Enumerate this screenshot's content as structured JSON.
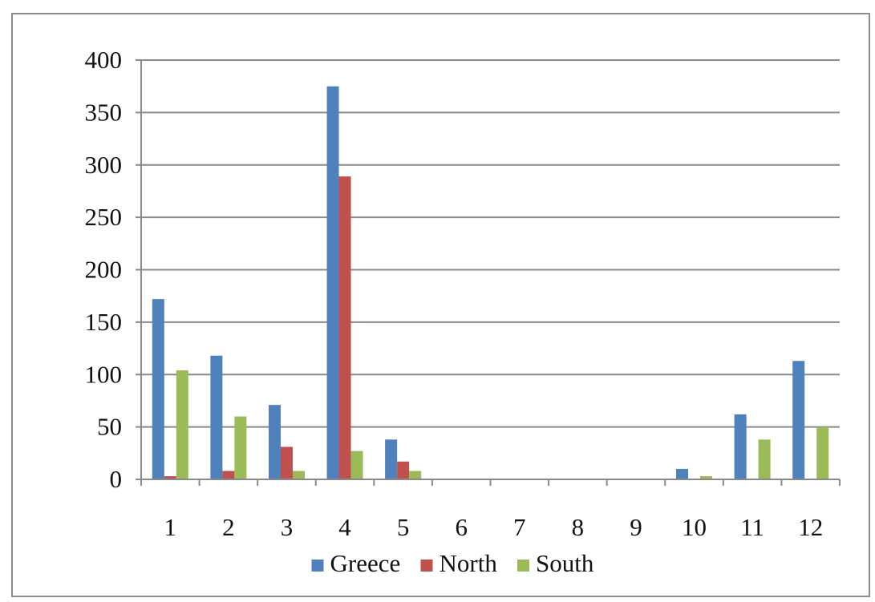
{
  "chart_data": {
    "type": "bar",
    "title": "",
    "xlabel": "",
    "ylabel": "",
    "categories": [
      "1",
      "2",
      "3",
      "4",
      "5",
      "6",
      "7",
      "8",
      "9",
      "10",
      "11",
      "12"
    ],
    "ylim": [
      0,
      400
    ],
    "yticks": [
      0,
      50,
      100,
      150,
      200,
      250,
      300,
      350,
      400
    ],
    "grid": true,
    "legend_position": "bottom",
    "series": [
      {
        "name": "Greece",
        "color": "#4f81bd",
        "values": [
          172,
          118,
          71,
          375,
          38,
          0,
          0,
          0,
          0,
          10,
          62,
          113
        ]
      },
      {
        "name": "North",
        "color": "#c0504d",
        "values": [
          3,
          8,
          31,
          289,
          17,
          0,
          0,
          0,
          0,
          0,
          0,
          0
        ]
      },
      {
        "name": "South",
        "color": "#9bbb59",
        "values": [
          104,
          60,
          8,
          27,
          8,
          0,
          0,
          0,
          0,
          3,
          38,
          50
        ]
      }
    ]
  }
}
